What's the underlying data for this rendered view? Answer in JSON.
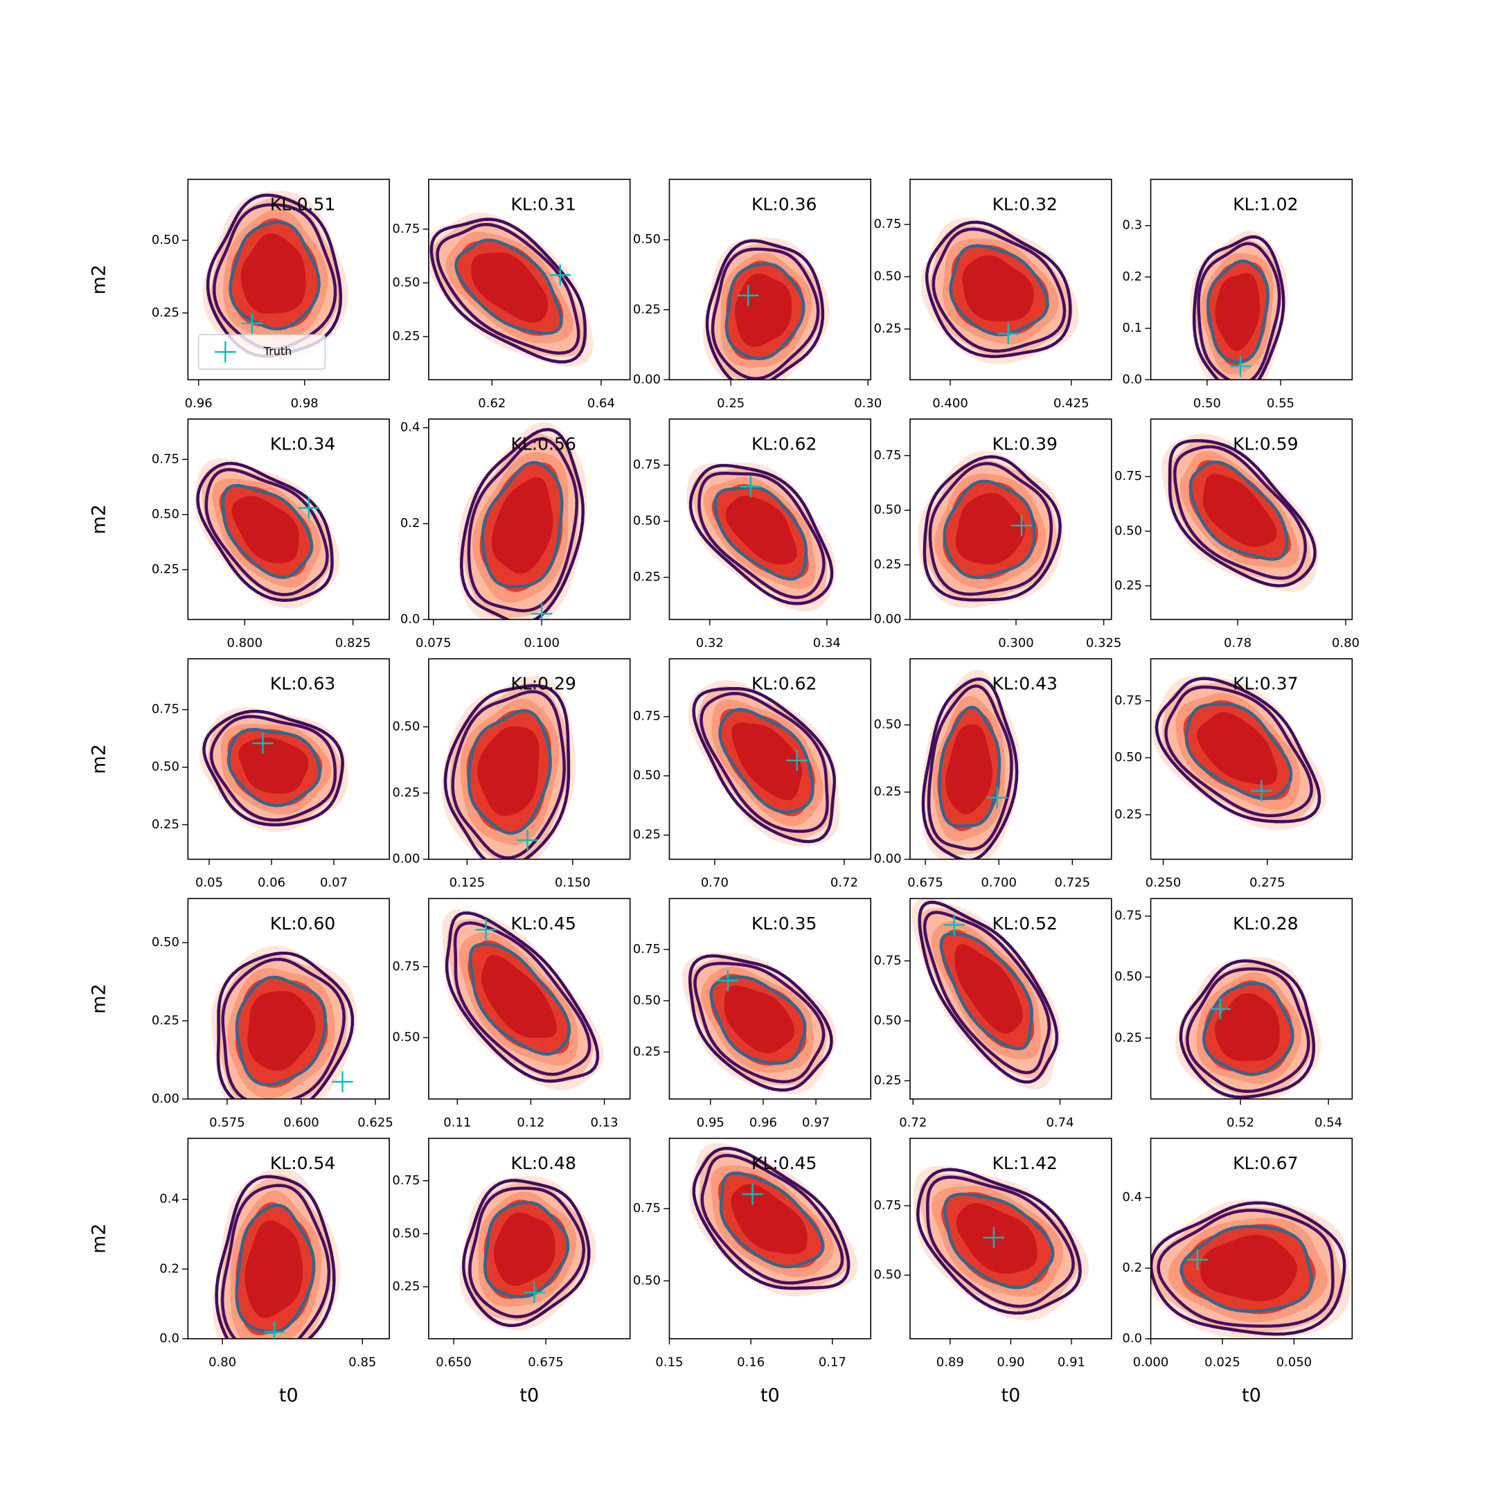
{
  "chart_data": [
    {
      "type": "scatter",
      "title": "KL:0.51",
      "ylabel": "m2",
      "xlim": [
        0.958,
        0.996
      ],
      "xticks": [
        0.96,
        0.98
      ],
      "ylim": [
        0.02,
        0.71
      ],
      "yticks": [
        0.25,
        {
          "value": 0.5,
          "label": "0.50"
        }
      ],
      "legend": "lower left",
      "series": [
        {
          "name": "Truth",
          "color": "#00bfbf",
          "x": [
            0.9701
          ],
          "values": [
            0.214
          ]
        }
      ]
    },
    {
      "type": "scatter",
      "title": "KL:0.31",
      "xlim": [
        0.6084,
        0.6453
      ],
      "xticks": [
        0.62,
        0.64
      ],
      "ylim": [
        0.049,
        0.982
      ],
      "yticks": [
        0.25,
        {
          "value": 0.5,
          "label": "0.50"
        },
        0.75
      ],
      "series": [
        {
          "color": "#00bfbf",
          "x": [
            0.6325
          ],
          "values": [
            0.536
          ]
        }
      ]
    },
    {
      "type": "scatter",
      "title": "KL:0.36",
      "xlim": [
        0.2276,
        0.301
      ],
      "xticks": [
        0.25,
        {
          "value": 0.3,
          "label": "0.30"
        }
      ],
      "ylim": [
        0,
        0.716
      ],
      "yticks": [
        {
          "value": 0,
          "label": "0.00"
        },
        0.25,
        {
          "value": 0.5,
          "label": "0.50"
        }
      ],
      "series": [
        {
          "color": "#00bfbf",
          "x": [
            0.2563
          ],
          "values": [
            0.301
          ]
        }
      ]
    },
    {
      "type": "scatter",
      "title": "KL:0.32",
      "xlim": [
        0.3917,
        0.4333
      ],
      "xticks": [
        {
          "value": 0.4,
          "label": "0.400"
        },
        0.425
      ],
      "ylim": [
        0.007,
        0.966
      ],
      "yticks": [
        0.25,
        {
          "value": 0.5,
          "label": "0.50"
        },
        0.75
      ],
      "series": [
        {
          "color": "#00bfbf",
          "x": [
            0.412
          ],
          "values": [
            0.227
          ]
        }
      ]
    },
    {
      "type": "scatter",
      "title": "KL:1.02",
      "xlim": [
        0.4617,
        0.5987
      ],
      "xticks": [
        {
          "value": 0.5,
          "label": "0.50"
        },
        0.55
      ],
      "ylim": [
        0,
        0.39
      ],
      "yticks": [
        {
          "value": 0,
          "label": "0.0"
        },
        0.1,
        0.2,
        0.3
      ],
      "series": [
        {
          "color": "#00bfbf",
          "x": [
            0.5227
          ],
          "values": [
            0.026
          ]
        }
      ]
    },
    {
      "type": "scatter",
      "title": "KL:0.34",
      "ylabel": "m2",
      "xlim": [
        0.7869,
        0.8334
      ],
      "xticks": [
        {
          "value": 0.8,
          "label": "0.800"
        },
        0.825
      ],
      "ylim": [
        0.024,
        0.933
      ],
      "yticks": [
        0.25,
        {
          "value": 0.5,
          "label": "0.50"
        },
        0.75
      ],
      "series": [
        {
          "color": "#00bfbf",
          "x": [
            0.8148
          ],
          "values": [
            0.53
          ]
        }
      ]
    },
    {
      "type": "scatter",
      "title": "KL:0.56",
      "xlim": [
        0.0739,
        0.1204
      ],
      "xticks": [
        0.075,
        {
          "value": 0.1,
          "label": "0.100"
        }
      ],
      "ylim": [
        0,
        0.418
      ],
      "yticks": [
        {
          "value": 0,
          "label": "0.0"
        },
        0.2,
        0.4
      ],
      "series": [
        {
          "color": "#00bfbf",
          "x": [
            0.1
          ],
          "values": [
            0.012
          ]
        }
      ]
    },
    {
      "type": "scatter",
      "title": "KL:0.62",
      "xlim": [
        0.3131,
        0.3475
      ],
      "xticks": [
        0.32,
        0.34
      ],
      "ylim": [
        0.062,
        0.955
      ],
      "yticks": [
        0.25,
        {
          "value": 0.5,
          "label": "0.50"
        },
        0.75
      ],
      "series": [
        {
          "color": "#00bfbf",
          "x": [
            0.327
          ],
          "values": [
            0.654
          ]
        }
      ]
    },
    {
      "type": "scatter",
      "title": "KL:0.39",
      "xlim": [
        0.2698,
        0.3272
      ],
      "xticks": [
        {
          "value": 0.3,
          "label": "0.300"
        },
        0.325
      ],
      "ylim": [
        0,
        0.917
      ],
      "yticks": [
        {
          "value": 0,
          "label": "0.00"
        },
        0.25,
        {
          "value": 0.5,
          "label": "0.50"
        },
        0.75
      ],
      "series": [
        {
          "color": "#00bfbf",
          "x": [
            0.3016
          ],
          "values": [
            0.43
          ]
        }
      ]
    },
    {
      "type": "scatter",
      "title": "KL:0.59",
      "xlim": [
        0.7639,
        0.8012
      ],
      "xticks": [
        0.78,
        {
          "value": 0.8,
          "label": "0.80"
        }
      ],
      "ylim": [
        0.096,
        1.013
      ],
      "yticks": [
        0.25,
        {
          "value": 0.5,
          "label": "0.50"
        },
        0.75
      ],
      "series": []
    },
    {
      "type": "scatter",
      "title": "KL:0.63",
      "ylabel": "m2",
      "xlim": [
        0.0466,
        0.0789
      ],
      "xticks": [
        0.05,
        0.06,
        0.07
      ],
      "ylim": [
        0.1,
        0.971
      ],
      "yticks": [
        0.25,
        {
          "value": 0.5,
          "label": "0.50"
        },
        0.75
      ],
      "series": [
        {
          "color": "#00bfbf",
          "x": [
            0.0586
          ],
          "values": [
            0.604
          ]
        }
      ]
    },
    {
      "type": "scatter",
      "title": "KL:0.29",
      "xlim": [
        0.1159,
        0.1636
      ],
      "xticks": [
        0.125,
        {
          "value": 0.15,
          "label": "0.150"
        }
      ],
      "ylim": [
        0,
        0.757
      ],
      "yticks": [
        {
          "value": 0,
          "label": "0.00"
        },
        0.25,
        {
          "value": 0.5,
          "label": "0.50"
        }
      ],
      "series": [
        {
          "color": "#00bfbf",
          "x": [
            0.1393
          ],
          "values": [
            0.072
          ]
        }
      ]
    },
    {
      "type": "scatter",
      "title": "KL:0.62",
      "xlim": [
        0.693,
        0.7241
      ],
      "xticks": [
        {
          "value": 0.7,
          "label": "0.70"
        },
        0.72
      ],
      "ylim": [
        0.148,
        0.994
      ],
      "yticks": [
        0.25,
        {
          "value": 0.5,
          "label": "0.50"
        },
        0.75
      ],
      "series": [
        {
          "color": "#00bfbf",
          "x": [
            0.7127
          ],
          "values": [
            0.565
          ]
        }
      ]
    },
    {
      "type": "scatter",
      "title": "KL:0.43",
      "xlim": [
        0.6698,
        0.7383
      ],
      "xticks": [
        0.675,
        {
          "value": 0.7,
          "label": "0.700"
        },
        0.725
      ],
      "ylim": [
        0,
        0.746
      ],
      "yticks": [
        {
          "value": 0,
          "label": "0.00"
        },
        0.25,
        {
          "value": 0.5,
          "label": "0.50"
        }
      ],
      "series": [
        {
          "color": "#00bfbf",
          "x": [
            0.6994
          ],
          "values": [
            0.229
          ]
        }
      ]
    },
    {
      "type": "scatter",
      "title": "KL:0.37",
      "xlim": [
        0.247,
        0.2954
      ],
      "xticks": [
        {
          "value": 0.25,
          "label": "0.250"
        },
        0.275
      ],
      "ylim": [
        0.055,
        0.934
      ],
      "yticks": [
        0.25,
        {
          "value": 0.5,
          "label": "0.50"
        },
        0.75
      ],
      "series": [
        {
          "color": "#00bfbf",
          "x": [
            0.2736
          ],
          "values": [
            0.355
          ]
        }
      ]
    },
    {
      "type": "scatter",
      "title": "KL:0.60",
      "ylabel": "m2",
      "xlim": [
        0.5618,
        0.6297
      ],
      "xticks": [
        0.575,
        {
          "value": 0.6,
          "label": "0.600"
        },
        0.625
      ],
      "ylim": [
        0,
        0.641
      ],
      "yticks": [
        {
          "value": 0,
          "label": "0.00"
        },
        0.25,
        {
          "value": 0.5,
          "label": "0.50"
        }
      ],
      "series": [
        {
          "color": "#00bfbf",
          "x": [
            0.6139
          ],
          "values": [
            0.055
          ]
        }
      ]
    },
    {
      "type": "scatter",
      "title": "KL:0.45",
      "xlim": [
        0.1061,
        0.1335
      ],
      "xticks": [
        0.11,
        0.12,
        0.13
      ],
      "ylim": [
        0.284,
        0.99
      ],
      "yticks": [
        {
          "value": 0.5,
          "label": "0.50"
        },
        0.75
      ],
      "series": [
        {
          "color": "#00bfbf",
          "x": [
            0.1139
          ],
          "values": [
            0.88
          ]
        }
      ]
    },
    {
      "type": "scatter",
      "title": "KL:0.35",
      "xlim": [
        0.9422,
        0.9804
      ],
      "xticks": [
        0.95,
        0.96,
        0.97
      ],
      "ylim": [
        0.021,
        0.998
      ],
      "yticks": [
        0.25,
        {
          "value": 0.5,
          "label": "0.50"
        },
        0.75
      ],
      "series": [
        {
          "color": "#00bfbf",
          "x": [
            0.9533
          ],
          "values": [
            0.598
          ]
        }
      ]
    },
    {
      "type": "scatter",
      "title": "KL:0.52",
      "xlim": [
        0.7196,
        0.747
      ],
      "xticks": [
        0.72,
        0.74
      ],
      "ylim": [
        0.174,
        1.01
      ],
      "yticks": [
        0.25,
        {
          "value": 0.5,
          "label": "0.50"
        },
        0.75
      ],
      "series": [
        {
          "color": "#00bfbf",
          "x": [
            0.7256
          ],
          "values": [
            0.9
          ]
        }
      ]
    },
    {
      "type": "scatter",
      "title": "KL:0.28",
      "xlim": [
        0.4996,
        0.5454
      ],
      "xticks": [
        0.52,
        0.54
      ],
      "ylim": [
        0,
        0.822
      ],
      "yticks": [
        0.25,
        {
          "value": 0.5,
          "label": "0.50"
        },
        0.75
      ],
      "series": [
        {
          "color": "#00bfbf",
          "x": [
            0.5154
          ],
          "values": [
            0.369
          ]
        }
      ]
    },
    {
      "type": "scatter",
      "title": "KL:0.54",
      "xlabel": "t0",
      "ylabel": "m2",
      "xlim": [
        0.7877,
        0.8596
      ],
      "xticks": [
        {
          "value": 0.8,
          "label": "0.80"
        },
        0.85
      ],
      "ylim": [
        0,
        0.575
      ],
      "yticks": [
        {
          "value": 0,
          "label": "0.0"
        },
        0.2,
        0.4
      ],
      "series": [
        {
          "color": "#00bfbf",
          "x": [
            0.8185
          ],
          "values": [
            0.019
          ]
        }
      ]
    },
    {
      "type": "scatter",
      "title": "KL:0.48",
      "xlabel": "t0",
      "xlim": [
        0.6432,
        0.6979
      ],
      "xticks": [
        {
          "value": 0.65,
          "label": "0.650"
        },
        0.675
      ],
      "ylim": [
        0.005,
        0.95
      ],
      "yticks": [
        0.25,
        {
          "value": 0.5,
          "label": "0.50"
        },
        0.75
      ],
      "series": [
        {
          "color": "#00bfbf",
          "x": [
            0.6719
          ],
          "values": [
            0.223
          ]
        }
      ]
    },
    {
      "type": "scatter",
      "title": "KL:0.45",
      "xlabel": "t0",
      "xlim": [
        0.15,
        0.1747
      ],
      "xticks": [
        0.15,
        0.16,
        0.17
      ],
      "ylim": [
        0.3,
        0.993
      ],
      "yticks": [
        {
          "value": 0.5,
          "label": "0.50"
        },
        0.75
      ],
      "series": [
        {
          "color": "#00bfbf",
          "x": [
            0.1602
          ],
          "values": [
            0.8
          ]
        }
      ]
    },
    {
      "type": "scatter",
      "title": "KL:1.42",
      "xlabel": "t0",
      "xlim": [
        0.8834,
        0.9166
      ],
      "xticks": [
        0.89,
        {
          "value": 0.9,
          "label": "0.90"
        },
        0.91
      ],
      "ylim": [
        0.271,
        0.993
      ],
      "yticks": [
        {
          "value": 0.5,
          "label": "0.50"
        },
        0.75
      ],
      "series": [
        {
          "color": "#00bfbf",
          "x": [
            0.8972
          ],
          "values": [
            0.635
          ]
        }
      ]
    },
    {
      "type": "scatter",
      "title": "KL:0.67",
      "xlabel": "t0",
      "xlim": [
        0,
        0.0703
      ],
      "xticks": [
        {
          "value": 0,
          "label": "0.000"
        },
        0.025,
        {
          "value": 0.05,
          "label": "0.050"
        }
      ],
      "ylim": [
        0,
        0.568
      ],
      "yticks": [
        {
          "value": 0,
          "label": "0.0"
        },
        0.2,
        0.4
      ],
      "series": [
        {
          "color": "#00bfbf",
          "x": [
            0.0163
          ],
          "values": [
            0.224
          ]
        }
      ]
    }
  ]
}
